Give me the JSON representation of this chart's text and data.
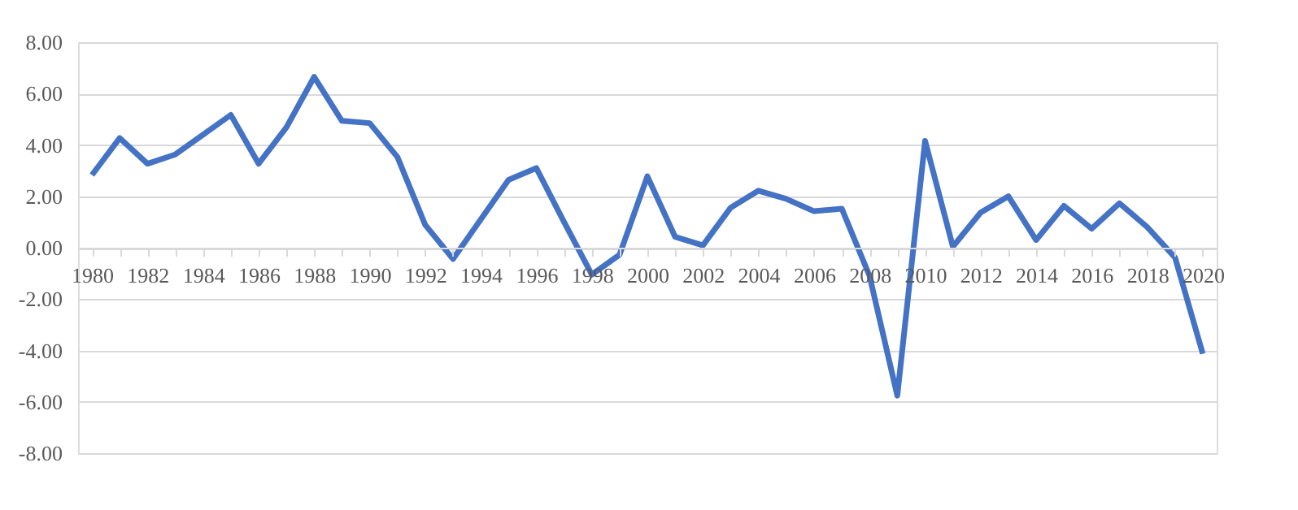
{
  "chart_data": {
    "type": "line",
    "categories": [
      "1980",
      null,
      "1982",
      null,
      "1984",
      null,
      "1986",
      null,
      "1988",
      null,
      "1990",
      null,
      "1992",
      null,
      "1994",
      null,
      "1996",
      null,
      "1998",
      null,
      "2000",
      null,
      "2002",
      null,
      "2004",
      null,
      "2006",
      null,
      "2008",
      null,
      "2010",
      null,
      "2012",
      null,
      "2014",
      null,
      "2016",
      null,
      "2018",
      null,
      "2020"
    ],
    "series": [
      {
        "color": "#4472c4",
        "values": [
          2.83,
          4.27,
          3.27,
          3.63,
          4.4,
          5.17,
          3.27,
          4.68,
          6.65,
          4.94,
          4.85,
          3.53,
          0.89,
          -0.44,
          1.1,
          2.64,
          3.1,
          1.0,
          -1.05,
          -0.27,
          2.78,
          0.42,
          0.09,
          1.56,
          2.22,
          1.9,
          1.42,
          1.52,
          -1.1,
          -5.76,
          4.16,
          0.04,
          1.37,
          2.0,
          0.3,
          1.63,
          0.74,
          1.73,
          0.8,
          -0.38,
          -4.13
        ]
      }
    ],
    "ylim": [
      -8,
      8
    ],
    "yticks": [
      {
        "value": -8,
        "label": "-8.00"
      },
      {
        "value": -6,
        "label": "-6.00"
      },
      {
        "value": -4,
        "label": "-4.00"
      },
      {
        "value": -2,
        "label": "-2.00"
      },
      {
        "value": 0,
        "label": "0.00"
      },
      {
        "value": 2,
        "label": "2.00"
      },
      {
        "value": 4,
        "label": "4.00"
      },
      {
        "value": 6,
        "label": "6.00"
      },
      {
        "value": 8,
        "label": "8.00"
      }
    ],
    "grid": "y",
    "marker": "none"
  }
}
